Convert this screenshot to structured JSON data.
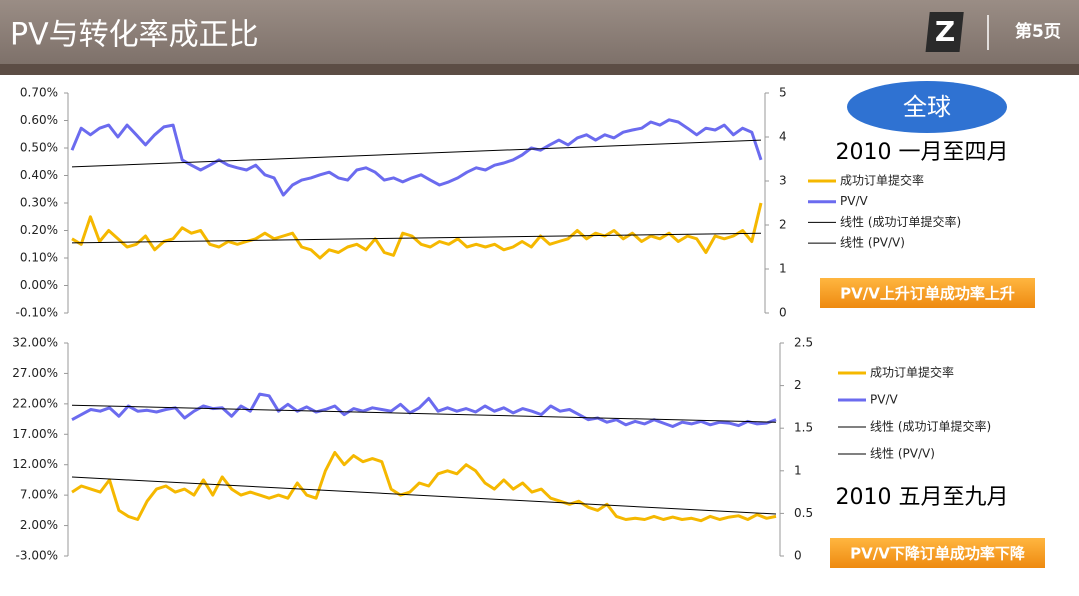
{
  "header": {
    "title": "PV与转化率成正比",
    "logo": "Z",
    "page": "第5页"
  },
  "chart_data": [
    {
      "type": "line",
      "badge": "全球",
      "period": "2010 一月至四月",
      "conclusion": "PV/V上升订单成功率上升",
      "ylim": [
        -0.1,
        0.7
      ],
      "yticks": [
        {
          "value": -0.1,
          "label": "-0.10%"
        },
        {
          "value": 0,
          "label": "0.00%"
        },
        {
          "value": 0.1,
          "label": "0.10%"
        },
        {
          "value": 0.2,
          "label": "0.20%"
        },
        {
          "value": 0.3,
          "label": "0.30%"
        },
        {
          "value": 0.4,
          "label": "0.40%"
        },
        {
          "value": 0.5,
          "label": "0.50%"
        },
        {
          "value": 0.6,
          "label": "0.60%"
        },
        {
          "value": 0.7,
          "label": "0.70%"
        }
      ],
      "y2lim": [
        0,
        5
      ],
      "y2ticks": [
        0,
        1,
        2,
        3,
        4,
        5
      ],
      "series": [
        {
          "name": "成功订单提交率",
          "color": "#f5b800",
          "values": [
            0.17,
            0.15,
            0.25,
            0.16,
            0.2,
            0.17,
            0.14,
            0.15,
            0.18,
            0.13,
            0.16,
            0.17,
            0.21,
            0.19,
            0.2,
            0.15,
            0.14,
            0.16,
            0.15,
            0.16,
            0.17,
            0.19,
            0.17,
            0.18,
            0.19,
            0.14,
            0.13,
            0.1,
            0.13,
            0.12,
            0.14,
            0.15,
            0.13,
            0.17,
            0.12,
            0.11,
            0.19,
            0.18,
            0.15,
            0.14,
            0.16,
            0.15,
            0.17,
            0.14,
            0.15,
            0.14,
            0.15,
            0.13,
            0.14,
            0.16,
            0.14,
            0.18,
            0.15,
            0.16,
            0.17,
            0.2,
            0.17,
            0.19,
            0.18,
            0.2,
            0.17,
            0.19,
            0.16,
            0.18,
            0.17,
            0.19,
            0.16,
            0.18,
            0.17,
            0.12,
            0.18,
            0.17,
            0.18,
            0.2,
            0.16,
            0.3
          ]
        },
        {
          "name": "PV/V",
          "color": "#6b6bef",
          "axis": "y2",
          "values": [
            3.7,
            4.2,
            4.05,
            4.2,
            4.27,
            4.0,
            4.27,
            4.05,
            3.82,
            4.05,
            4.23,
            4.27,
            3.48,
            3.36,
            3.25,
            3.36,
            3.48,
            3.36,
            3.3,
            3.25,
            3.36,
            3.14,
            3.07,
            2.68,
            2.91,
            3.02,
            3.07,
            3.14,
            3.2,
            3.07,
            3.02,
            3.25,
            3.3,
            3.2,
            3.02,
            3.07,
            2.98,
            3.07,
            3.14,
            3.02,
            2.91,
            2.98,
            3.07,
            3.2,
            3.3,
            3.25,
            3.36,
            3.41,
            3.48,
            3.59,
            3.75,
            3.7,
            3.82,
            3.93,
            3.82,
            3.98,
            4.05,
            3.93,
            4.05,
            3.98,
            4.11,
            4.16,
            4.2,
            4.34,
            4.27,
            4.39,
            4.34,
            4.2,
            4.05,
            4.2,
            4.16,
            4.27,
            4.05,
            4.2,
            4.11,
            3.48
          ]
        },
        {
          "name": "线性 (成功订单提交率)",
          "color": "#000000",
          "trend": true,
          "values": [
            0.155,
            0.19
          ]
        },
        {
          "name": "线性 (PV/V)",
          "color": "#000000",
          "trend": true,
          "axis": "y2",
          "values": [
            3.32,
            3.93
          ]
        }
      ]
    },
    {
      "type": "line",
      "period": "2010 五月至九月",
      "conclusion": "PV/V下降订单成功率下降",
      "ylim": [
        -3,
        32
      ],
      "yticks": [
        {
          "value": -3,
          "label": "-3.00%"
        },
        {
          "value": 2,
          "label": "2.00%"
        },
        {
          "value": 7,
          "label": "7.00%"
        },
        {
          "value": 12,
          "label": "12.00%"
        },
        {
          "value": 17,
          "label": "17.00%"
        },
        {
          "value": 22,
          "label": "22.00%"
        },
        {
          "value": 27,
          "label": "27.00%"
        },
        {
          "value": 32,
          "label": "32.00%"
        }
      ],
      "y2lim": [
        0,
        2.5
      ],
      "y2ticks": [
        0,
        0.5,
        1,
        1.5,
        2,
        2.5
      ],
      "series": [
        {
          "name": "成功订单提交率",
          "color": "#f5b800",
          "values": [
            7.5,
            8.5,
            8.0,
            7.5,
            9.5,
            4.5,
            3.5,
            3.0,
            6.0,
            8.0,
            8.5,
            7.5,
            8.0,
            7.0,
            9.5,
            7.0,
            10.0,
            8.0,
            7.0,
            7.5,
            7.0,
            6.5,
            7.0,
            6.5,
            9.0,
            7.0,
            6.5,
            11.0,
            14.0,
            12.0,
            13.5,
            12.5,
            13.0,
            12.5,
            8.0,
            7.0,
            7.5,
            9.0,
            8.5,
            10.5,
            11.0,
            10.5,
            12.0,
            11.0,
            9.0,
            8.0,
            9.5,
            8.0,
            9.0,
            7.5,
            8.0,
            6.5,
            6.0,
            5.5,
            6.0,
            5.0,
            4.5,
            5.5,
            3.5,
            3.0,
            3.2,
            3.0,
            3.5,
            3.0,
            3.4,
            3.0,
            3.2,
            2.8,
            3.5,
            3.0,
            3.4,
            3.6,
            3.0,
            3.8,
            3.2,
            3.5
          ]
        },
        {
          "name": "PV/V",
          "color": "#6b6bef",
          "axis": "y2",
          "values": [
            1.6,
            1.66,
            1.72,
            1.7,
            1.74,
            1.64,
            1.76,
            1.7,
            1.71,
            1.69,
            1.72,
            1.74,
            1.62,
            1.7,
            1.76,
            1.73,
            1.74,
            1.64,
            1.76,
            1.7,
            1.9,
            1.88,
            1.7,
            1.78,
            1.7,
            1.75,
            1.69,
            1.72,
            1.76,
            1.66,
            1.73,
            1.7,
            1.74,
            1.72,
            1.7,
            1.78,
            1.68,
            1.74,
            1.85,
            1.7,
            1.74,
            1.7,
            1.73,
            1.69,
            1.76,
            1.7,
            1.74,
            1.68,
            1.73,
            1.7,
            1.66,
            1.76,
            1.7,
            1.72,
            1.66,
            1.6,
            1.62,
            1.57,
            1.6,
            1.54,
            1.58,
            1.55,
            1.6,
            1.56,
            1.52,
            1.57,
            1.55,
            1.58,
            1.54,
            1.57,
            1.56,
            1.53,
            1.58,
            1.55,
            1.56,
            1.6
          ]
        },
        {
          "name": "线性 (成功订单提交率)",
          "color": "#000000",
          "trend": true,
          "values": [
            9.98,
            3.9
          ]
        },
        {
          "name": "线性 (PV/V)",
          "color": "#000000",
          "trend": true,
          "axis": "y2",
          "values": [
            1.77,
            1.57
          ]
        }
      ]
    }
  ]
}
